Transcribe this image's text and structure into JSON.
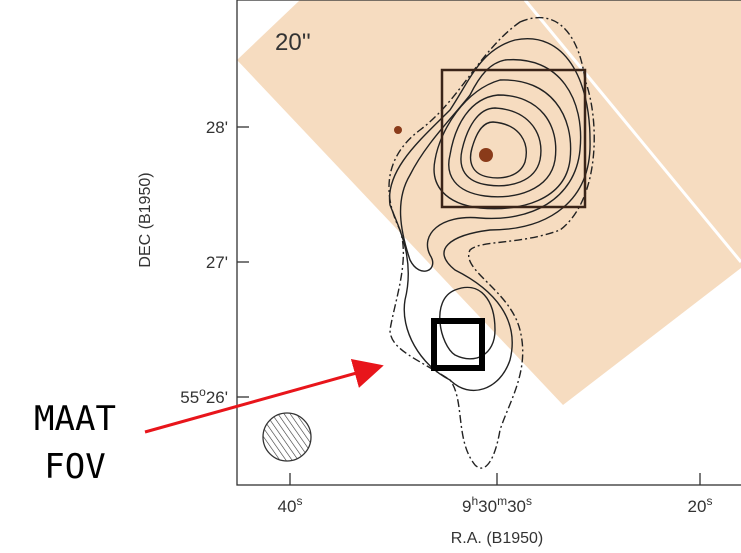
{
  "scale_label": "20''",
  "dec_axis": {
    "label": "DEC (B1950)",
    "ticks": [
      [
        "28'"
      ],
      [
        "27'"
      ],
      [
        "55",
        "o",
        "26'"
      ]
    ]
  },
  "ra_axis": {
    "label": "R.A. (B1950)",
    "ticks": [
      [
        "40",
        "s"
      ],
      [
        "9",
        "h",
        "30",
        "m",
        "30",
        "s"
      ],
      [
        "20",
        "s"
      ]
    ]
  },
  "annotation": {
    "line1": "MAAT",
    "line2": "FOV"
  }
}
